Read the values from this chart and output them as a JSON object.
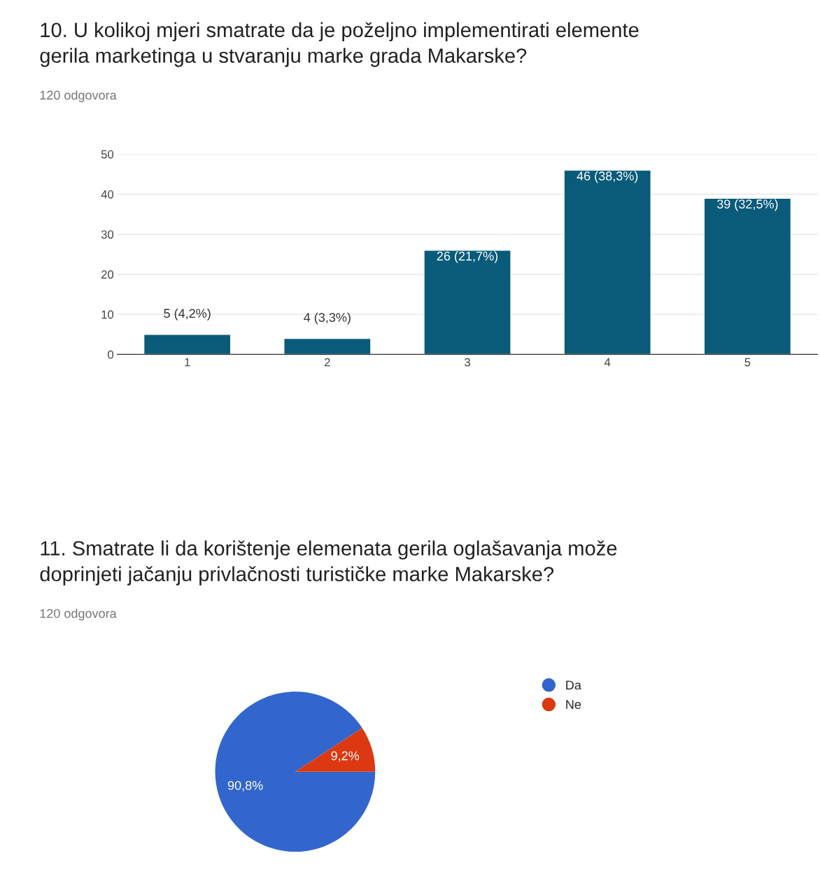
{
  "chart_data": [
    {
      "type": "bar",
      "title": "10. U kolikoj mjeri smatrate da je poželjno implementirati elemente\ngerila marketinga u stvaranju marke grada Makarske?",
      "subtitle": "120 odgovora",
      "categories": [
        "1",
        "2",
        "3",
        "4",
        "5"
      ],
      "values": [
        5,
        4,
        26,
        46,
        39
      ],
      "value_labels": [
        "5 (4,2%)",
        "4 (3,3%)",
        "26 (21,7%)",
        "46 (38,3%)",
        "39 (32,5%)"
      ],
      "color": "#0a5b7a",
      "ylim": [
        0,
        50
      ],
      "yticks": [
        0,
        10,
        20,
        30,
        40,
        50
      ],
      "grid": "y"
    },
    {
      "type": "pie",
      "title": "11. Smatrate li da korištenje elemenata gerila oglašavanja može\ndoprinjeti jačanju privlačnosti turističke marke Makarske?",
      "subtitle": "120 odgovora",
      "categories": [
        "Da",
        "Ne"
      ],
      "values": [
        90.8,
        9.2
      ],
      "value_labels": [
        "90,8%",
        "9,2%"
      ],
      "colors": [
        "#3366cc",
        "#dc3912"
      ],
      "legend": "top right"
    }
  ]
}
